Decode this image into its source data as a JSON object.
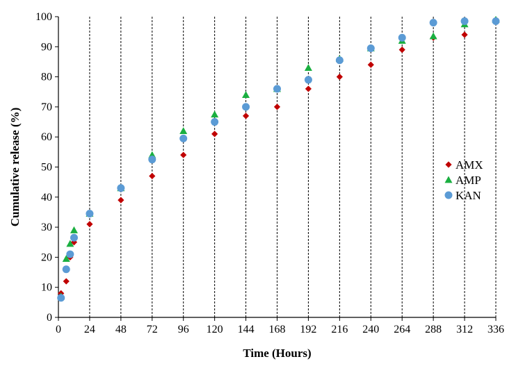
{
  "chart_data": {
    "type": "scatter",
    "title": "",
    "xlabel": "Time (Hours)",
    "ylabel": "Cumulative release (%)",
    "xlim": [
      0,
      336
    ],
    "ylim": [
      0,
      100
    ],
    "xticks": [
      0,
      24,
      48,
      72,
      96,
      120,
      144,
      168,
      192,
      216,
      240,
      264,
      288,
      312,
      336
    ],
    "yticks": [
      0,
      10,
      20,
      30,
      40,
      50,
      60,
      70,
      80,
      90,
      100
    ],
    "grid": "vertical-dashed",
    "legend_position": "right",
    "series": [
      {
        "name": "AMX",
        "marker": "diamond",
        "color": "#c00000",
        "points": [
          [
            2,
            8
          ],
          [
            6,
            12
          ],
          [
            9,
            20
          ],
          [
            12,
            25
          ],
          [
            24,
            31
          ],
          [
            48,
            39
          ],
          [
            72,
            47
          ],
          [
            96,
            54
          ],
          [
            120,
            61
          ],
          [
            144,
            67
          ],
          [
            168,
            70
          ],
          [
            192,
            76
          ],
          [
            216,
            80
          ],
          [
            240,
            84
          ],
          [
            264,
            89
          ],
          [
            288,
            93
          ],
          [
            312,
            94
          ],
          [
            336,
            99
          ]
        ]
      },
      {
        "name": "AMP",
        "marker": "triangle",
        "color": "#1aaf40",
        "points": [
          [
            2,
            7
          ],
          [
            6,
            19.5
          ],
          [
            9,
            24.5
          ],
          [
            12,
            29
          ],
          [
            24,
            34.5
          ],
          [
            48,
            43
          ],
          [
            72,
            54
          ],
          [
            96,
            62
          ],
          [
            120,
            67.5
          ],
          [
            144,
            74
          ],
          [
            168,
            76
          ],
          [
            192,
            83
          ],
          [
            216,
            86
          ],
          [
            240,
            89.5
          ],
          [
            264,
            92
          ],
          [
            288,
            93.5
          ],
          [
            312,
            97.5
          ],
          [
            336,
            99
          ]
        ]
      },
      {
        "name": "KAN",
        "marker": "circle",
        "color": "#5b9bd5",
        "points": [
          [
            2,
            6.5
          ],
          [
            6,
            16
          ],
          [
            9,
            21
          ],
          [
            12,
            26.5
          ],
          [
            24,
            34.5
          ],
          [
            48,
            43
          ],
          [
            72,
            52.5
          ],
          [
            96,
            59.5
          ],
          [
            120,
            65
          ],
          [
            144,
            70
          ],
          [
            168,
            76
          ],
          [
            192,
            79
          ],
          [
            216,
            85.5
          ],
          [
            240,
            89.5
          ],
          [
            264,
            93
          ],
          [
            288,
            98
          ],
          [
            312,
            98.5
          ],
          [
            336,
            98.5
          ]
        ]
      }
    ]
  }
}
